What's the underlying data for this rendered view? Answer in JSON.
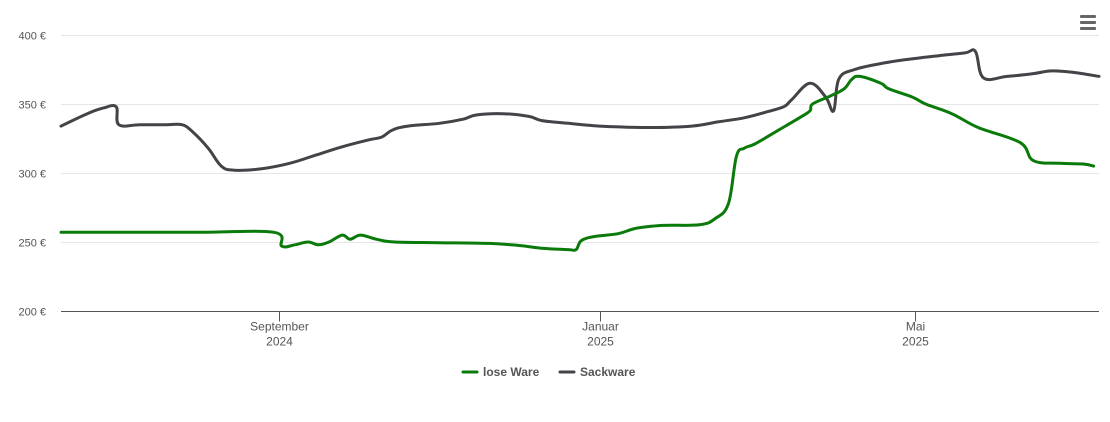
{
  "menu": {
    "icon": "hamburger-menu-icon"
  },
  "chart_data": {
    "type": "line",
    "title": "",
    "xlabel": "",
    "ylabel": "",
    "ylim": [
      200,
      400
    ],
    "y_ticks": [
      {
        "value": 200,
        "label": "200 €"
      },
      {
        "value": 250,
        "label": "250 €"
      },
      {
        "value": 300,
        "label": "300 €"
      },
      {
        "value": 350,
        "label": "350 €"
      },
      {
        "value": 400,
        "label": "400 €"
      }
    ],
    "xlim": [
      "2024-06-10",
      "2025-07-10"
    ],
    "x_ticks": [
      {
        "date": "2024-09-01",
        "line1": "September",
        "line2": "2024"
      },
      {
        "date": "2025-01-01",
        "line1": "Januar",
        "line2": "2025"
      },
      {
        "date": "2025-05-01",
        "line1": "Mai",
        "line2": "2025"
      }
    ],
    "grid": true,
    "legend_position": "bottom-center",
    "series": [
      {
        "name": "lose Ware",
        "color": "#0a7a0a",
        "points": [
          [
            "2024-06-10",
            257
          ],
          [
            "2024-07-01",
            257
          ],
          [
            "2024-08-01",
            257
          ],
          [
            "2024-08-30",
            257
          ],
          [
            "2024-09-02",
            247
          ],
          [
            "2024-09-07",
            248
          ],
          [
            "2024-09-12",
            250
          ],
          [
            "2024-09-16",
            248
          ],
          [
            "2024-09-20",
            250
          ],
          [
            "2024-09-25",
            255
          ],
          [
            "2024-09-28",
            252
          ],
          [
            "2024-10-02",
            255
          ],
          [
            "2024-10-08",
            252
          ],
          [
            "2024-10-15",
            250
          ],
          [
            "2024-11-01",
            249.5
          ],
          [
            "2024-11-20",
            249
          ],
          [
            "2024-12-01",
            247.5
          ],
          [
            "2024-12-10",
            245.5
          ],
          [
            "2024-12-20",
            244.5
          ],
          [
            "2024-12-23",
            244.5
          ],
          [
            "2024-12-25",
            251
          ],
          [
            "2024-12-30",
            254
          ],
          [
            "2025-01-08",
            256
          ],
          [
            "2025-01-15",
            260
          ],
          [
            "2025-01-25",
            262
          ],
          [
            "2025-02-08",
            262.5
          ],
          [
            "2025-02-14",
            267
          ],
          [
            "2025-02-19",
            278
          ],
          [
            "2025-02-22",
            312
          ],
          [
            "2025-02-25",
            318
          ],
          [
            "2025-03-01",
            321
          ],
          [
            "2025-03-10",
            331
          ],
          [
            "2025-03-18",
            340
          ],
          [
            "2025-03-22",
            345
          ],
          [
            "2025-03-23",
            350
          ],
          [
            "2025-03-30",
            356
          ],
          [
            "2025-04-04",
            361
          ],
          [
            "2025-04-07",
            368
          ],
          [
            "2025-04-10",
            370
          ],
          [
            "2025-04-18",
            365
          ],
          [
            "2025-04-21",
            361
          ],
          [
            "2025-04-30",
            355
          ],
          [
            "2025-05-05",
            350
          ],
          [
            "2025-05-15",
            343
          ],
          [
            "2025-05-25",
            333
          ],
          [
            "2025-06-10",
            322
          ],
          [
            "2025-06-15",
            309
          ],
          [
            "2025-06-25",
            307
          ],
          [
            "2025-07-04",
            306.5
          ],
          [
            "2025-07-08",
            305
          ]
        ]
      },
      {
        "name": "Sackware",
        "color": "#434348",
        "points": [
          [
            "2024-06-10",
            334
          ],
          [
            "2024-06-20",
            343
          ],
          [
            "2024-06-26",
            347
          ],
          [
            "2024-07-01",
            348
          ],
          [
            "2024-07-02",
            335
          ],
          [
            "2024-07-10",
            335
          ],
          [
            "2024-07-20",
            335
          ],
          [
            "2024-07-26",
            335
          ],
          [
            "2024-07-30",
            330
          ],
          [
            "2024-08-05",
            318
          ],
          [
            "2024-08-10",
            305
          ],
          [
            "2024-08-15",
            302
          ],
          [
            "2024-08-25",
            303
          ],
          [
            "2024-09-05",
            307
          ],
          [
            "2024-09-15",
            313
          ],
          [
            "2024-09-25",
            319
          ],
          [
            "2024-10-05",
            324
          ],
          [
            "2024-10-10",
            326
          ],
          [
            "2024-10-14",
            331
          ],
          [
            "2024-10-20",
            334
          ],
          [
            "2024-11-01",
            336
          ],
          [
            "2024-11-10",
            339
          ],
          [
            "2024-11-15",
            342
          ],
          [
            "2024-11-25",
            343
          ],
          [
            "2024-12-05",
            341
          ],
          [
            "2024-12-10",
            338
          ],
          [
            "2024-12-20",
            336
          ],
          [
            "2025-01-01",
            334
          ],
          [
            "2025-01-20",
            333
          ],
          [
            "2025-02-05",
            334
          ],
          [
            "2025-02-15",
            337
          ],
          [
            "2025-02-25",
            340
          ],
          [
            "2025-03-05",
            344
          ],
          [
            "2025-03-12",
            348
          ],
          [
            "2025-03-15",
            353
          ],
          [
            "2025-03-22",
            365
          ],
          [
            "2025-03-28",
            355
          ],
          [
            "2025-03-31",
            345
          ],
          [
            "2025-04-02",
            368
          ],
          [
            "2025-04-08",
            375
          ],
          [
            "2025-04-20",
            380
          ],
          [
            "2025-05-01",
            383
          ],
          [
            "2025-05-10",
            385
          ],
          [
            "2025-05-20",
            387
          ],
          [
            "2025-05-24",
            388
          ],
          [
            "2025-05-27",
            369
          ],
          [
            "2025-06-05",
            370
          ],
          [
            "2025-06-15",
            372
          ],
          [
            "2025-06-22",
            374
          ],
          [
            "2025-06-30",
            373
          ],
          [
            "2025-07-10",
            370
          ]
        ]
      }
    ]
  }
}
